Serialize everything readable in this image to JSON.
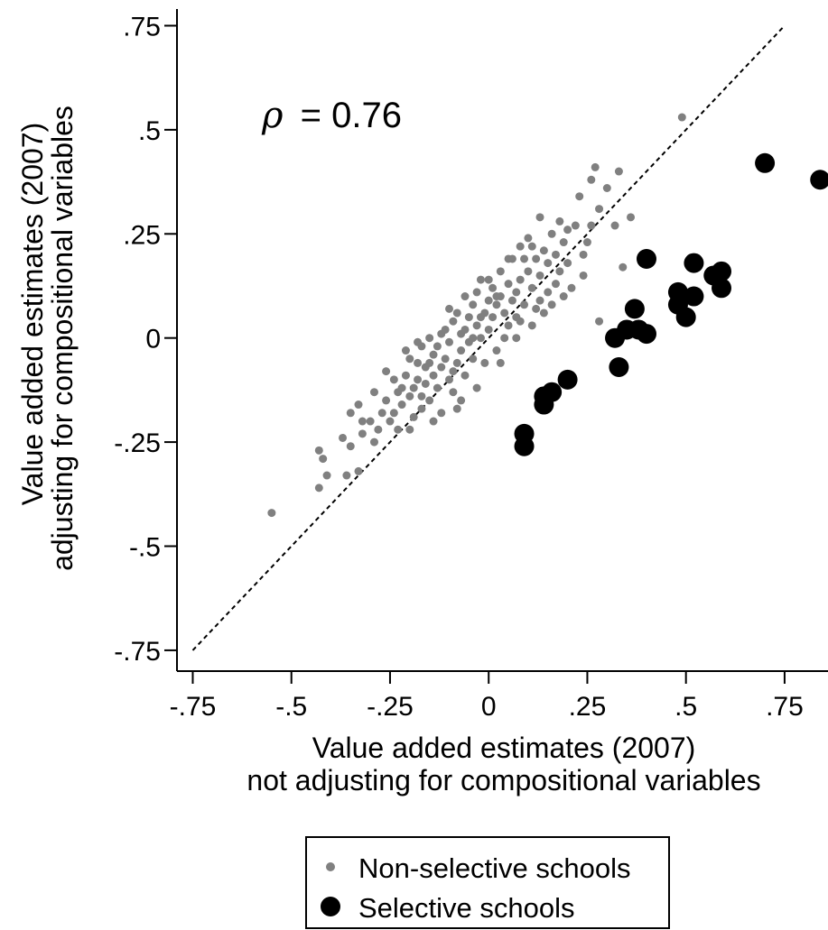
{
  "chart_data": {
    "type": "scatter",
    "xlabel_line1": "Value added estimates (2007)",
    "xlabel_line2": "not adjusting for compositional variables",
    "ylabel_line1": "Value added estimates (2007)",
    "ylabel_line2": "adjusting for compositional variables",
    "annotation_symbol": "ρ",
    "annotation_value": "= 0.76",
    "xlim": [
      -0.79,
      0.86
    ],
    "ylim": [
      -0.8,
      0.79
    ],
    "x_ticks": [
      -0.75,
      -0.5,
      -0.25,
      0,
      0.25,
      0.5,
      0.75
    ],
    "x_tick_labels": [
      "-.75",
      "-.5",
      "-.25",
      "0",
      ".25",
      ".5",
      ".75"
    ],
    "y_ticks": [
      -0.75,
      -0.5,
      -0.25,
      0,
      0.25,
      0.5,
      0.75
    ],
    "y_tick_labels": [
      "-.75",
      "-.5",
      "-.25",
      "0",
      ".25",
      ".5",
      ".75"
    ],
    "reference_line": {
      "from": [
        -0.75,
        -0.75
      ],
      "to": [
        0.75,
        0.75
      ],
      "style": "dashed"
    },
    "grid": false,
    "legend_position": "bottom",
    "series": [
      {
        "name": "Non-selective schools",
        "color": "#808080",
        "marker": "small-circle",
        "points": [
          [
            -0.55,
            -0.42
          ],
          [
            -0.43,
            -0.36
          ],
          [
            -0.41,
            -0.33
          ],
          [
            -0.43,
            -0.27
          ],
          [
            -0.42,
            -0.29
          ],
          [
            -0.37,
            -0.24
          ],
          [
            -0.35,
            -0.26
          ],
          [
            -0.33,
            -0.32
          ],
          [
            -0.36,
            -0.33
          ],
          [
            -0.33,
            -0.16
          ],
          [
            -0.32,
            -0.2
          ],
          [
            -0.3,
            -0.2
          ],
          [
            -0.29,
            -0.25
          ],
          [
            -0.28,
            -0.22
          ],
          [
            -0.27,
            -0.18
          ],
          [
            -0.26,
            -0.15
          ],
          [
            -0.25,
            -0.2
          ],
          [
            -0.24,
            -0.18
          ],
          [
            -0.23,
            -0.22
          ],
          [
            -0.22,
            -0.16
          ],
          [
            -0.22,
            -0.12
          ],
          [
            -0.21,
            -0.09
          ],
          [
            -0.2,
            -0.14
          ],
          [
            -0.2,
            -0.05
          ],
          [
            -0.19,
            -0.12
          ],
          [
            -0.19,
            -0.19
          ],
          [
            -0.18,
            -0.1
          ],
          [
            -0.18,
            -0.06
          ],
          [
            -0.17,
            -0.14
          ],
          [
            -0.17,
            -0.02
          ],
          [
            -0.16,
            -0.11
          ],
          [
            -0.16,
            -0.07
          ],
          [
            -0.15,
            -0.15
          ],
          [
            -0.15,
            0.0
          ],
          [
            -0.14,
            -0.09
          ],
          [
            -0.14,
            -0.04
          ],
          [
            -0.13,
            -0.12
          ],
          [
            -0.13,
            -0.02
          ],
          [
            -0.12,
            -0.07
          ],
          [
            -0.12,
            -0.18
          ],
          [
            -0.11,
            -0.05
          ],
          [
            -0.11,
            0.02
          ],
          [
            -0.1,
            -0.1
          ],
          [
            -0.1,
            -0.01
          ],
          [
            -0.09,
            -0.13
          ],
          [
            -0.09,
            0.04
          ],
          [
            -0.08,
            -0.06
          ],
          [
            -0.08,
            0.06
          ],
          [
            -0.07,
            -0.03
          ],
          [
            -0.07,
            -0.15
          ],
          [
            -0.06,
            0.02
          ],
          [
            -0.06,
            -0.09
          ],
          [
            -0.05,
            0.05
          ],
          [
            -0.05,
            -0.01
          ],
          [
            -0.04,
            0.08
          ],
          [
            -0.04,
            -0.05
          ],
          [
            -0.03,
            0.03
          ],
          [
            -0.03,
            0.11
          ],
          [
            -0.02,
            0.0
          ],
          [
            -0.02,
            0.14
          ],
          [
            -0.01,
            0.06
          ],
          [
            -0.01,
            -0.06
          ],
          [
            0.0,
            0.09
          ],
          [
            0.0,
            0.02
          ],
          [
            0.01,
            0.12
          ],
          [
            0.01,
            0.05
          ],
          [
            0.02,
            0.08
          ],
          [
            0.02,
            -0.03
          ],
          [
            0.03,
            0.1
          ],
          [
            0.03,
            0.16
          ],
          [
            0.04,
            0.06
          ],
          [
            0.05,
            0.13
          ],
          [
            0.05,
            0.03
          ],
          [
            0.06,
            0.09
          ],
          [
            0.06,
            0.19
          ],
          [
            0.07,
            0.11
          ],
          [
            0.07,
            0.05
          ],
          [
            0.08,
            0.14
          ],
          [
            0.08,
            0.22
          ],
          [
            0.09,
            0.08
          ],
          [
            0.1,
            0.16
          ],
          [
            0.1,
            0.24
          ],
          [
            0.11,
            0.12
          ],
          [
            0.12,
            0.19
          ],
          [
            0.12,
            0.07
          ],
          [
            0.13,
            0.15
          ],
          [
            0.13,
            0.29
          ],
          [
            0.14,
            0.21
          ],
          [
            0.15,
            0.11
          ],
          [
            0.15,
            0.18
          ],
          [
            0.16,
            0.25
          ],
          [
            0.17,
            0.13
          ],
          [
            0.17,
            0.2
          ],
          [
            0.18,
            0.16
          ],
          [
            0.19,
            0.23
          ],
          [
            0.2,
            0.18
          ],
          [
            0.21,
            0.12
          ],
          [
            0.22,
            0.27
          ],
          [
            0.23,
            0.34
          ],
          [
            0.24,
            0.2
          ],
          [
            0.25,
            0.23
          ],
          [
            0.26,
            0.27
          ],
          [
            0.26,
            0.38
          ],
          [
            0.27,
            0.41
          ],
          [
            0.28,
            0.04
          ],
          [
            0.28,
            0.31
          ],
          [
            0.3,
            0.36
          ],
          [
            0.32,
            0.27
          ],
          [
            0.33,
            0.4
          ],
          [
            0.34,
            0.17
          ],
          [
            0.36,
            0.29
          ],
          [
            0.49,
            0.53
          ],
          [
            -0.32,
            -0.23
          ],
          [
            -0.24,
            -0.1
          ],
          [
            -0.2,
            -0.22
          ],
          [
            -0.14,
            -0.2
          ],
          [
            -0.08,
            -0.17
          ],
          [
            -0.03,
            -0.12
          ],
          [
            0.03,
            -0.06
          ],
          [
            0.07,
            0.0
          ],
          [
            0.11,
            0.03
          ],
          [
            -0.26,
            -0.08
          ],
          [
            -0.18,
            -0.01
          ],
          [
            -0.1,
            0.07
          ],
          [
            -0.02,
            0.05
          ],
          [
            0.04,
            0.0
          ],
          [
            0.09,
            0.19
          ],
          [
            0.14,
            0.06
          ],
          [
            0.19,
            0.1
          ],
          [
            -0.29,
            -0.13
          ],
          [
            -0.21,
            -0.03
          ],
          [
            -0.12,
            0.01
          ],
          [
            -0.06,
            0.1
          ],
          [
            0.0,
            0.14
          ],
          [
            0.05,
            0.19
          ],
          [
            0.11,
            0.22
          ],
          [
            0.16,
            0.08
          ],
          [
            0.2,
            0.26
          ],
          [
            -0.35,
            -0.18
          ],
          [
            -0.17,
            -0.17
          ],
          [
            -0.09,
            -0.08
          ],
          [
            -0.04,
            0.0
          ],
          [
            0.02,
            0.1
          ],
          [
            0.08,
            0.04
          ],
          [
            0.13,
            0.09
          ],
          [
            0.18,
            0.28
          ],
          [
            0.24,
            0.15
          ],
          [
            -0.23,
            -0.13
          ],
          [
            -0.15,
            -0.06
          ],
          [
            -0.07,
            0.01
          ]
        ]
      },
      {
        "name": "Selective schools",
        "color": "#000000",
        "marker": "large-circle",
        "points": [
          [
            0.09,
            -0.26
          ],
          [
            0.09,
            -0.23
          ],
          [
            0.14,
            -0.14
          ],
          [
            0.14,
            -0.16
          ],
          [
            0.16,
            -0.13
          ],
          [
            0.2,
            -0.1
          ],
          [
            0.32,
            0.0
          ],
          [
            0.33,
            -0.07
          ],
          [
            0.35,
            0.02
          ],
          [
            0.37,
            0.07
          ],
          [
            0.38,
            0.02
          ],
          [
            0.4,
            0.01
          ],
          [
            0.4,
            0.19
          ],
          [
            0.48,
            0.08
          ],
          [
            0.48,
            0.11
          ],
          [
            0.5,
            0.05
          ],
          [
            0.52,
            0.1
          ],
          [
            0.52,
            0.18
          ],
          [
            0.57,
            0.15
          ],
          [
            0.59,
            0.12
          ],
          [
            0.59,
            0.16
          ],
          [
            0.7,
            0.42
          ],
          [
            0.84,
            0.38
          ]
        ]
      }
    ]
  }
}
